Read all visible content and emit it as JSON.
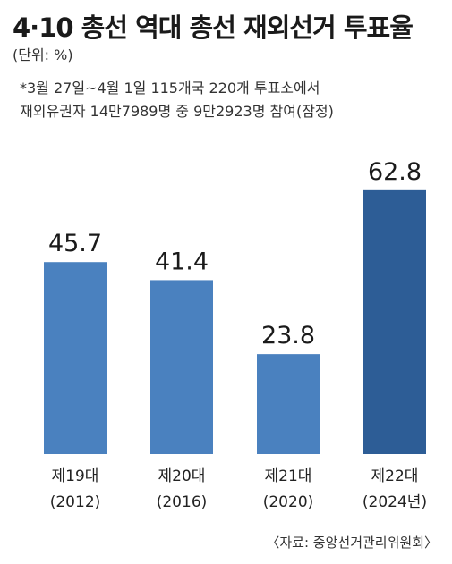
{
  "title": "4·10 총선 역대 총선 재외선거 투표율",
  "unit": "(단위: %)",
  "note": {
    "line1": "*3월 27일~4월 1일 115개국 220개 투표소에서",
    "line2": "재외유권자 14만7989명 중 9만2923명 참여(잠정)"
  },
  "source": "〈자료: 중앙선거관리위원회〉",
  "colors": {
    "bar": "#4a81bf",
    "highlight_bar": "#2d5d96"
  },
  "chart_data": {
    "type": "bar",
    "categories": [
      [
        "제19대",
        "(2012)"
      ],
      [
        "제20대",
        "(2016)"
      ],
      [
        "제21대",
        "(2020)"
      ],
      [
        "제22대",
        "(2024년)"
      ]
    ],
    "values": [
      45.7,
      41.4,
      23.8,
      62.8
    ],
    "value_labels": [
      "45.7",
      "41.4",
      "23.8",
      "62.8"
    ],
    "highlight_index": 3,
    "ylim": [
      0,
      70
    ],
    "grid": false
  }
}
